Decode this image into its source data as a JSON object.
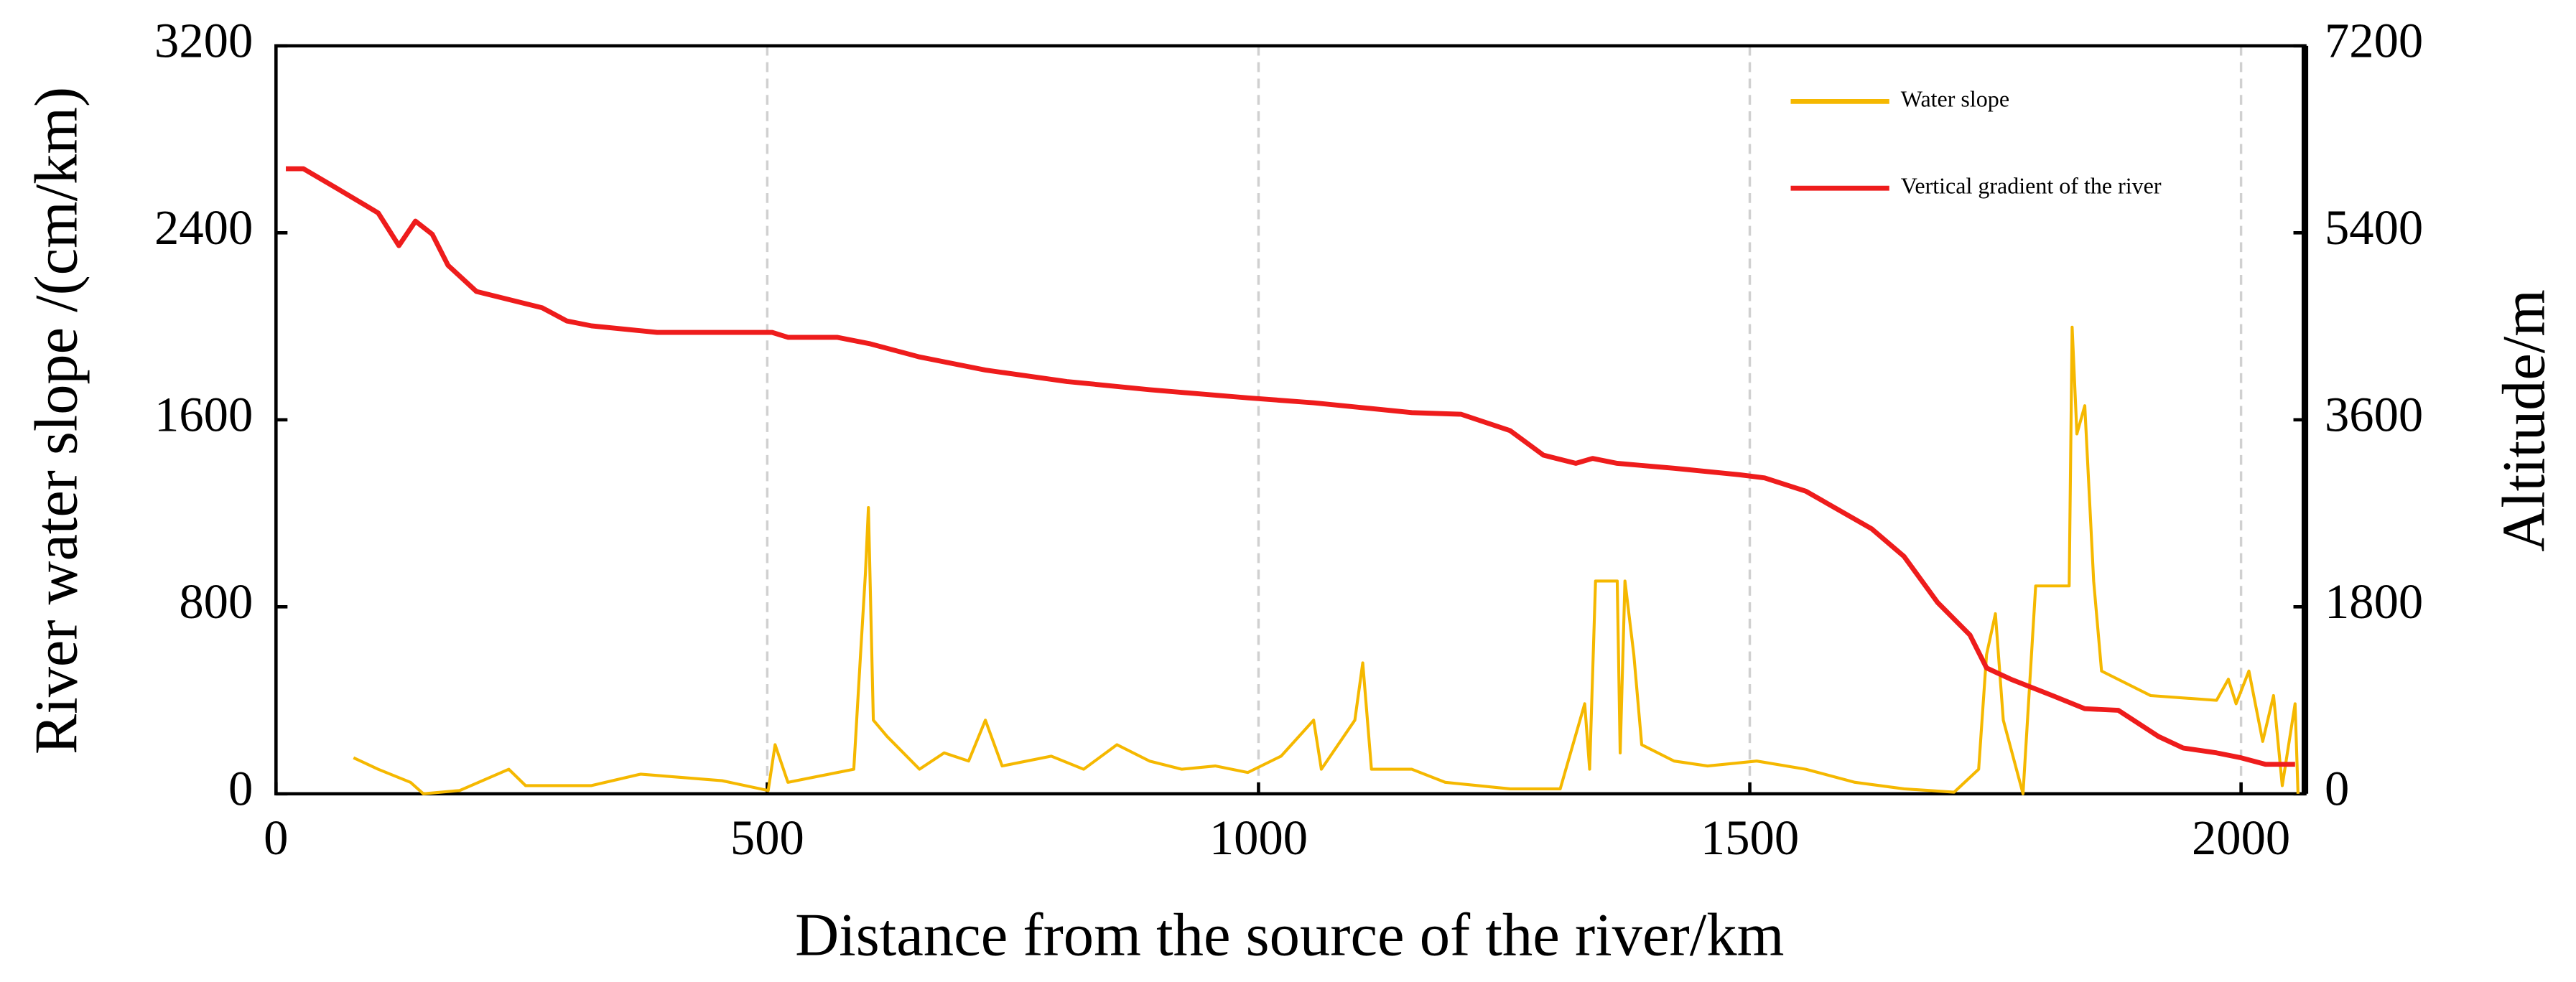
{
  "chart_data": {
    "type": "line",
    "x_label": "Distance from the source of the river/km",
    "y_label": "River water slope /(cm/km)",
    "y2_label": "Altitude/m",
    "xlim": [
      0,
      2065
    ],
    "xticks": [
      0,
      500,
      1000,
      1500,
      2000
    ],
    "ylim": [
      0,
      3200
    ],
    "yticks": [
      0,
      800,
      1600,
      2400,
      3200
    ],
    "y2lim": [
      0,
      7200
    ],
    "y2ticks": [
      0,
      1800,
      3600,
      5400,
      7200
    ],
    "grid": true,
    "legend": "upper right",
    "series": [
      {
        "name": "Water slope",
        "color": "#f5b800",
        "axis": "y",
        "x": [
          79,
          104,
          137,
          150,
          187,
          237,
          254,
          321,
          371,
          454,
          501,
          508,
          521,
          588,
          595,
          600,
          603,
          608,
          622,
          655,
          680,
          705,
          722,
          739,
          789,
          822,
          856,
          889,
          922,
          956,
          989,
          1023,
          1056,
          1064,
          1098,
          1106,
          1115,
          1156,
          1190,
          1256,
          1307,
          1332,
          1337,
          1343,
          1365,
          1368,
          1373,
          1382,
          1390,
          1423,
          1457,
          1507,
          1557,
          1607,
          1657,
          1708,
          1733,
          1741,
          1750,
          1758,
          1778,
          1791,
          1825,
          1828,
          1833,
          1841,
          1850,
          1858,
          1908,
          1975,
          1987,
          1995,
          2008,
          2022,
          2033,
          2042,
          2055,
          2058
        ],
        "values": [
          154,
          105,
          49,
          0,
          14,
          105,
          35,
          35,
          84,
          56,
          14,
          210,
          49,
          105,
          595,
          945,
          1225,
          315,
          245,
          105,
          175,
          140,
          315,
          119,
          161,
          105,
          210,
          140,
          105,
          119,
          91,
          161,
          315,
          105,
          315,
          560,
          105,
          105,
          49,
          21,
          21,
          385,
          105,
          910,
          910,
          175,
          910,
          595,
          210,
          140,
          119,
          140,
          105,
          49,
          21,
          7,
          105,
          595,
          770,
          315,
          0,
          889,
          889,
          1996,
          1540,
          1660,
          910,
          525,
          420,
          400,
          490,
          385,
          525,
          224,
          420,
          35,
          385,
          0
        ]
      },
      {
        "name": "Vertical gradient of the river",
        "color": "#ee1c1c",
        "axis": "y2",
        "x": [
          10,
          28,
          62,
          104,
          125,
          142,
          159,
          175,
          204,
          271,
          296,
          321,
          388,
          505,
          521,
          571,
          605,
          655,
          722,
          805,
          889,
          989,
          1056,
          1156,
          1206,
          1256,
          1290,
          1323,
          1340,
          1365,
          1423,
          1490,
          1515,
          1557,
          1624,
          1657,
          1691,
          1724,
          1741,
          1766,
          1808,
          1841,
          1875,
          1916,
          1941,
          1975,
          2000,
          2025,
          2055
        ],
        "values": [
          6017,
          6017,
          5828,
          5591,
          5276,
          5513,
          5387,
          5087,
          4835,
          4678,
          4552,
          4505,
          4442,
          4442,
          4394,
          4394,
          4331,
          4205,
          4079,
          3969,
          3890,
          3811,
          3764,
          3670,
          3654,
          3496,
          3260,
          3181,
          3228,
          3181,
          3134,
          3071,
          3040,
          2913,
          2551,
          2284,
          1843,
          1528,
          1212,
          1102,
          945,
          819,
          803,
          551,
          441,
          394,
          346,
          283,
          283
        ]
      }
    ]
  }
}
